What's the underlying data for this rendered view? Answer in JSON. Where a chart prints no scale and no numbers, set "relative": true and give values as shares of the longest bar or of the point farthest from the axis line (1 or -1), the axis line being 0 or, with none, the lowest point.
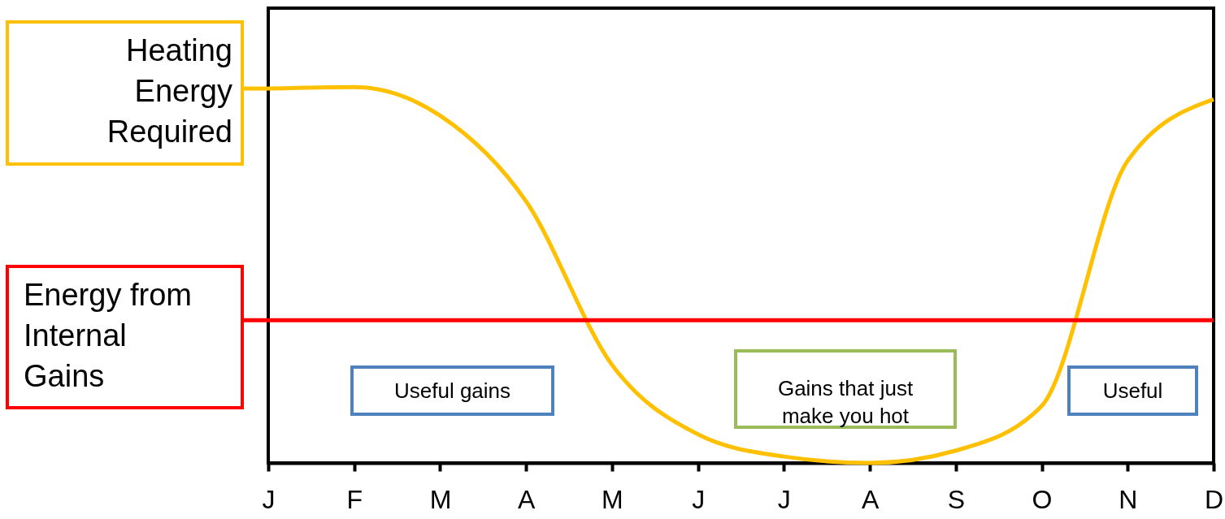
{
  "chart_data": {
    "type": "line",
    "relative": true,
    "categories": [
      "J",
      "F",
      "M",
      "A",
      "M",
      "J",
      "J",
      "A",
      "S",
      "O",
      "N",
      "D"
    ],
    "series": [
      {
        "name": "Heating Energy Required",
        "color": "#ffc000",
        "values": [
          0.996,
          1,
          0.924,
          0.696,
          0.261,
          0.076,
          0.017,
          0,
          0.033,
          0.152,
          0.804,
          0.967
        ]
      }
    ],
    "ref_lines": [
      {
        "axis": "y",
        "value": 0.38,
        "label": "Energy from Internal Gains",
        "color": "#ff0000"
      }
    ],
    "annotations": [
      "Useful gains",
      "Gains that just make you hot",
      "Useful"
    ],
    "grid": false,
    "marker": "none",
    "line_style": "solid"
  }
}
